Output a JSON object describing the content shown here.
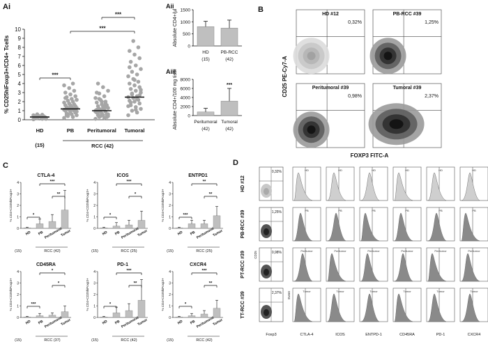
{
  "panel_labels": {
    "ai": "Ai",
    "aii": "Aii",
    "aiii": "Aiii",
    "b": "B",
    "c": "C",
    "d": "D"
  },
  "chart_data": [
    {
      "id": "Ai",
      "type": "scatter",
      "ylabel": "% CD25hiFoxp3+/CD4+ Tcells",
      "ylim": [
        0,
        10
      ],
      "yticks": [
        "0",
        "1",
        "2",
        "3",
        "4",
        "5",
        "6",
        "7",
        "8",
        "9",
        "10"
      ],
      "categories": [
        "HD",
        "PB",
        "Peritumoral",
        "Tumoral"
      ],
      "counts": [
        "(15)",
        "RCC (42)"
      ],
      "medians": [
        0.3,
        1.2,
        1.0,
        2.5
      ],
      "points": {
        "HD": [
          0.05,
          0.1,
          0.15,
          0.2,
          0.25,
          0.3,
          0.3,
          0.35,
          0.4,
          0.4,
          0.45,
          0.5,
          0.55,
          0.6,
          0.1
        ],
        "PB": [
          0.2,
          0.3,
          0.4,
          0.5,
          0.6,
          0.7,
          0.8,
          0.9,
          1.0,
          1.0,
          1.1,
          1.1,
          1.2,
          1.2,
          1.3,
          1.3,
          1.4,
          1.5,
          1.5,
          1.6,
          1.7,
          1.8,
          1.9,
          2.0,
          2.1,
          2.2,
          2.3,
          2.5,
          2.6,
          2.8,
          3.0,
          3.2,
          3.5,
          3.8,
          4.0,
          0.6,
          0.9,
          1.4,
          0.5,
          0.8,
          1.6,
          2.4
        ],
        "Peritumoral": [
          0.1,
          0.2,
          0.3,
          0.4,
          0.5,
          0.5,
          0.6,
          0.7,
          0.8,
          0.9,
          1.0,
          1.0,
          1.1,
          1.2,
          1.3,
          1.4,
          1.5,
          1.6,
          1.7,
          1.9,
          2.0,
          2.2,
          2.4,
          2.6,
          2.9,
          3.2,
          3.6,
          4.0,
          0.3,
          0.7,
          1.1,
          1.8,
          0.4,
          0.9,
          1.5,
          2.3,
          0.6,
          1.2,
          0.8,
          1.4,
          2.0,
          3.0
        ],
        "Tumoral": [
          0.5,
          0.8,
          1.0,
          1.2,
          1.4,
          1.6,
          1.8,
          2.0,
          2.1,
          2.2,
          2.4,
          2.5,
          2.6,
          2.8,
          3.0,
          3.2,
          3.4,
          3.6,
          3.8,
          4.0,
          4.2,
          4.5,
          4.8,
          5.0,
          5.3,
          5.6,
          6.0,
          6.4,
          6.8,
          7.2,
          7.6,
          8.0,
          8.7,
          1.5,
          2.3,
          2.9,
          3.3,
          1.1,
          1.9,
          2.7,
          4.4,
          5.8
        ]
      },
      "significance": [
        "***",
        "***",
        "***"
      ]
    },
    {
      "id": "Aii",
      "type": "bar",
      "ylabel": "Absolute CD4+/µl",
      "ylim": [
        0,
        1500
      ],
      "yticks": [
        "0",
        "500",
        "1000",
        "1500"
      ],
      "categories": [
        "HD",
        "PB-RCC"
      ],
      "counts": [
        "(15)",
        "(42)"
      ],
      "values": [
        800,
        740
      ],
      "errors": [
        220,
        330
      ]
    },
    {
      "id": "Aiii",
      "type": "bar",
      "ylabel": "Absolute CD4+/100 mg tissue",
      "ylim": [
        0,
        8000
      ],
      "yticks": [
        "0",
        "2000",
        "4000",
        "6000",
        "8000"
      ],
      "categories": [
        "Peritumoral",
        "Tumoral"
      ],
      "counts": [
        "(42)",
        "(42)"
      ],
      "values": [
        800,
        3200
      ],
      "errors": [
        800,
        2800
      ],
      "significance": "***"
    },
    {
      "id": "C",
      "type": "bar",
      "categories": [
        "HD",
        "PB",
        "Peritumoral",
        "Tumor"
      ],
      "panels": [
        {
          "title": "CTLA-4",
          "ylabel": "% CD4+CD25hiFoxp3+",
          "yticks": [
            "0",
            "1",
            "2",
            "3",
            "4"
          ],
          "ymax": 4,
          "values": [
            0.05,
            0.4,
            0.6,
            1.6
          ],
          "errors": [
            0.05,
            0.4,
            0.6,
            1.7
          ],
          "count_label": "(15)",
          "group_label": "RCC (42)",
          "sig": [
            "*",
            "***",
            "**"
          ]
        },
        {
          "title": "ICOS",
          "ylabel": "% CD4+CD25hiFoxp3+",
          "yticks": [
            "0",
            "1",
            "2",
            "3",
            "4"
          ],
          "ymax": 4,
          "values": [
            0.05,
            0.2,
            0.3,
            0.7
          ],
          "errors": [
            0.05,
            0.3,
            0.4,
            0.8
          ],
          "count_label": "(15)",
          "group_label": "RCC (25)",
          "sig": [
            "*",
            "***",
            "*"
          ]
        },
        {
          "title": "ENTPD1",
          "ylabel": "% CD4+CD25hiFoxp3+",
          "yticks": [
            "0",
            "1",
            "2",
            "3",
            "4"
          ],
          "ymax": 4,
          "values": [
            0.05,
            0.4,
            0.4,
            1.1
          ],
          "errors": [
            0.05,
            0.3,
            0.3,
            0.8
          ],
          "count_label": "(15)",
          "group_label": "RCC (25)",
          "sig": [
            "***",
            "**",
            "**"
          ]
        },
        {
          "title": "CD45RA",
          "ylabel": "% CD4+CD25hiFoxp3+",
          "yticks": [
            "0",
            "1",
            "2",
            "3",
            "4"
          ],
          "ymax": 4,
          "values": [
            0.05,
            0.15,
            0.2,
            0.5
          ],
          "errors": [
            0.05,
            0.2,
            0.2,
            0.5
          ],
          "count_label": "(15)",
          "group_label": "RCC (37)",
          "sig": [
            "***",
            "*",
            "*"
          ]
        },
        {
          "title": "PD-1",
          "ylabel": "% CD4+CD25hiFoxp3+",
          "yticks": [
            "0",
            "1",
            "2",
            "3",
            "4"
          ],
          "ymax": 4,
          "values": [
            0.05,
            0.4,
            0.6,
            1.5
          ],
          "errors": [
            0.05,
            0.5,
            0.6,
            1.8
          ],
          "count_label": "(15)",
          "group_label": "RCC (42)",
          "sig": [
            "*",
            "***",
            "**"
          ]
        },
        {
          "title": "CXCR4",
          "ylabel": "% CD4+CD25hiFoxp3+",
          "yticks": [
            "0",
            "1",
            "2",
            "3",
            "4"
          ],
          "ymax": 4,
          "values": [
            0.05,
            0.15,
            0.3,
            0.8
          ],
          "errors": [
            0.05,
            0.2,
            0.3,
            0.7
          ],
          "count_label": "(15)",
          "group_label": "RCC (42)",
          "sig": [
            "*",
            "***",
            "**"
          ]
        }
      ]
    }
  ],
  "panel_b": {
    "yaxis": "CD25 PE-Cy7-A",
    "xaxis": "FOXP3 FITC-A",
    "plots": [
      {
        "title": "HD #12",
        "pct": "0,32%"
      },
      {
        "title": "PB-RCC #39",
        "pct": "1,25%"
      },
      {
        "title": "Peritumoral #39",
        "pct": "0,98%"
      },
      {
        "title": "Tumoral #39",
        "pct": "2,37%"
      }
    ]
  },
  "panel_d": {
    "rows": [
      {
        "label": "HD #12",
        "pct": "0,32%",
        "sub": "HD"
      },
      {
        "label": "PB-RCC #39",
        "pct": "1,25%",
        "sub": "PB"
      },
      {
        "label": "PT-RCC #39",
        "pct": "0,98%",
        "sub": "Peritumor"
      },
      {
        "label": "TT-RCC #39",
        "pct": "2,37%",
        "sub": "Tumor"
      }
    ],
    "columns": [
      "Foxp3",
      "CTLA-4",
      "ICOS",
      "ENTPD-1",
      "CD45RA",
      "PD-1",
      "CXCR4"
    ],
    "axis_cd25": "CD25",
    "axis_event": "Event"
  }
}
